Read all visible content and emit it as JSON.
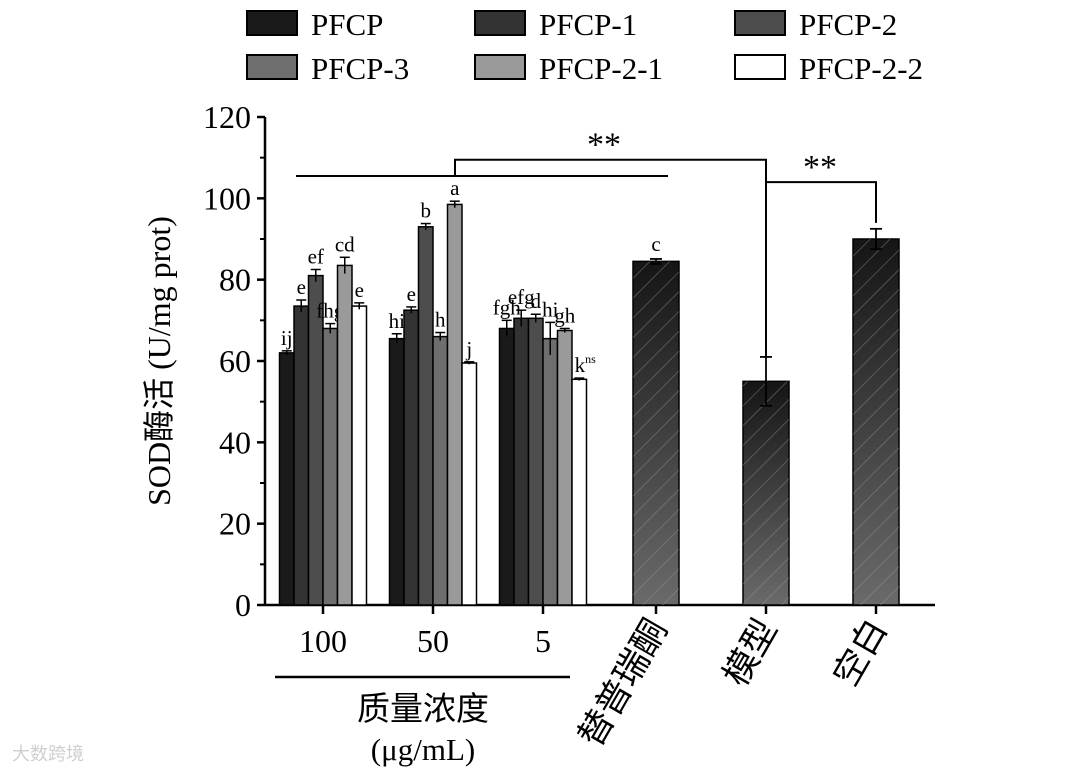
{
  "chart_data": {
    "type": "bar",
    "ylabel": "SOD酶活 (U/mg prot)",
    "ylim": [
      0,
      120
    ],
    "yticks": [
      0,
      20,
      40,
      60,
      80,
      100,
      120
    ],
    "legend": {
      "placement": "top",
      "entries": [
        "PFCP",
        "PFCP-1",
        "PFCP-2",
        "PFCP-3",
        "PFCP-2-1",
        "PFCP-2-2"
      ]
    },
    "series_colors": [
      "#1a1a1a",
      "#333333",
      "#4d4d4d",
      "#6e6e6e",
      "#9a9a9a",
      "#ffffff"
    ],
    "grouped": {
      "categories": [
        "100",
        "50",
        "5"
      ],
      "series": [
        {
          "name": "PFCP",
          "values": [
            62,
            65.5,
            68
          ],
          "errors": [
            0.5,
            1.2,
            2.0
          ],
          "labels": [
            "ij",
            "hi",
            "fgh"
          ]
        },
        {
          "name": "PFCP-1",
          "values": [
            73.5,
            72.5,
            70.5
          ],
          "errors": [
            1.5,
            0.8,
            2.0
          ],
          "labels": [
            "e",
            "e",
            "efg"
          ]
        },
        {
          "name": "PFCP-2",
          "values": [
            81,
            93,
            70.5
          ],
          "errors": [
            1.5,
            0.8,
            1.0
          ],
          "labels": [
            "ef",
            "b",
            "d"
          ]
        },
        {
          "name": "PFCP-3",
          "values": [
            68,
            66,
            65.5
          ],
          "errors": [
            1.2,
            1.0,
            4.0
          ],
          "labels": [
            "fhg",
            "h",
            "hi"
          ]
        },
        {
          "name": "PFCP-2-1",
          "values": [
            83.5,
            98.5,
            67.5
          ],
          "errors": [
            2.0,
            0.8,
            0.5
          ],
          "labels": [
            "cd",
            "a",
            "gh"
          ]
        },
        {
          "name": "PFCP-2-2",
          "values": [
            73.5,
            59.5,
            55.5
          ],
          "errors": [
            0.8,
            0.3,
            0.3
          ],
          "labels": [
            "e",
            "j",
            "k"
          ]
        }
      ],
      "group_label": "质量浓度",
      "group_unit": "(μg/mL)",
      "ns_superscript": "ns"
    },
    "controls": [
      {
        "name": "替普瑞酮",
        "value": 84.5,
        "error": 0.6,
        "label": "c"
      },
      {
        "name": "模型",
        "value": 55,
        "error": 6.0,
        "label": ""
      },
      {
        "name": "空白",
        "value": 90,
        "error": 2.5,
        "label": ""
      }
    ],
    "annotations": {
      "sig_1": "**",
      "sig_2": "**"
    }
  },
  "watermark": "大数跨境"
}
